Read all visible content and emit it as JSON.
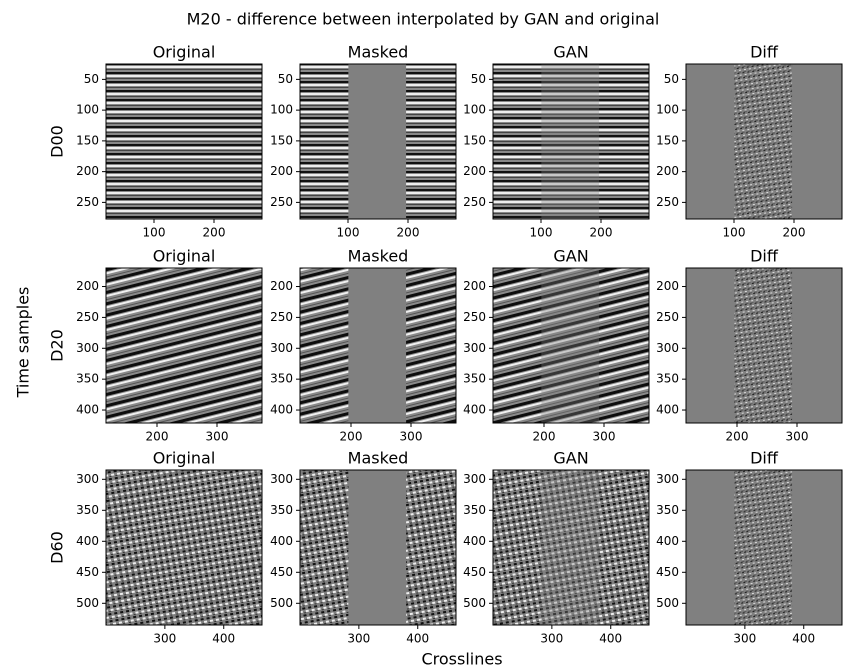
{
  "title": "M20 - difference between interpolated by GAN and original",
  "xlabel": "Crosslines",
  "ylabel": "Time samples",
  "row_labels": [
    "D00",
    "D20",
    "D60"
  ],
  "chart_data": [
    {
      "type": "image",
      "title": "Original",
      "xlim": [
        20,
        280
      ],
      "ylim": [
        277,
        25
      ],
      "xticks": [
        100,
        200
      ],
      "yticks": [
        50,
        100,
        150,
        200,
        250
      ]
    },
    {
      "type": "image",
      "title": "Masked",
      "xlim": [
        20,
        280
      ],
      "ylim": [
        277,
        25
      ],
      "xticks": [
        100,
        200
      ],
      "yticks": [
        50,
        100,
        150,
        200,
        250
      ]
    },
    {
      "type": "image",
      "title": "GAN",
      "xlim": [
        20,
        280
      ],
      "ylim": [
        277,
        25
      ],
      "xticks": [
        100,
        200
      ],
      "yticks": [
        50,
        100,
        150,
        200,
        250
      ]
    },
    {
      "type": "image",
      "title": "Diff",
      "xlim": [
        20,
        280
      ],
      "ylim": [
        277,
        25
      ],
      "xticks": [
        100,
        200
      ],
      "yticks": [
        50,
        100,
        150,
        200,
        250
      ]
    },
    {
      "type": "image",
      "title": "Original",
      "xlim": [
        115,
        375
      ],
      "ylim": [
        421,
        170
      ],
      "xticks": [
        200,
        300
      ],
      "yticks": [
        200,
        250,
        300,
        350,
        400
      ]
    },
    {
      "type": "image",
      "title": "Masked",
      "xlim": [
        115,
        375
      ],
      "ylim": [
        421,
        170
      ],
      "xticks": [
        200,
        300
      ],
      "yticks": [
        200,
        250,
        300,
        350,
        400
      ]
    },
    {
      "type": "image",
      "title": "GAN",
      "xlim": [
        115,
        375
      ],
      "ylim": [
        421,
        170
      ],
      "xticks": [
        200,
        300
      ],
      "yticks": [
        200,
        250,
        300,
        350,
        400
      ]
    },
    {
      "type": "image",
      "title": "Diff",
      "xlim": [
        115,
        375
      ],
      "ylim": [
        421,
        170
      ],
      "xticks": [
        200,
        300
      ],
      "yticks": [
        200,
        250,
        300,
        350,
        400
      ]
    },
    {
      "type": "image",
      "title": "Original",
      "xlim": [
        200,
        465
      ],
      "ylim": [
        535,
        285
      ],
      "xticks": [
        300,
        400
      ],
      "yticks": [
        300,
        350,
        400,
        450,
        500
      ]
    },
    {
      "type": "image",
      "title": "Masked",
      "xlim": [
        200,
        465
      ],
      "ylim": [
        535,
        285
      ],
      "xticks": [
        300,
        400
      ],
      "yticks": [
        300,
        350,
        400,
        450,
        500
      ]
    },
    {
      "type": "image",
      "title": "GAN",
      "xlim": [
        200,
        465
      ],
      "ylim": [
        535,
        285
      ],
      "xticks": [
        300,
        400
      ],
      "yticks": [
        300,
        350,
        400,
        450,
        500
      ]
    },
    {
      "type": "image",
      "title": "Diff",
      "xlim": [
        200,
        465
      ],
      "ylim": [
        535,
        285
      ],
      "xticks": [
        300,
        400
      ],
      "yticks": [
        300,
        350,
        400,
        450,
        500
      ]
    }
  ]
}
